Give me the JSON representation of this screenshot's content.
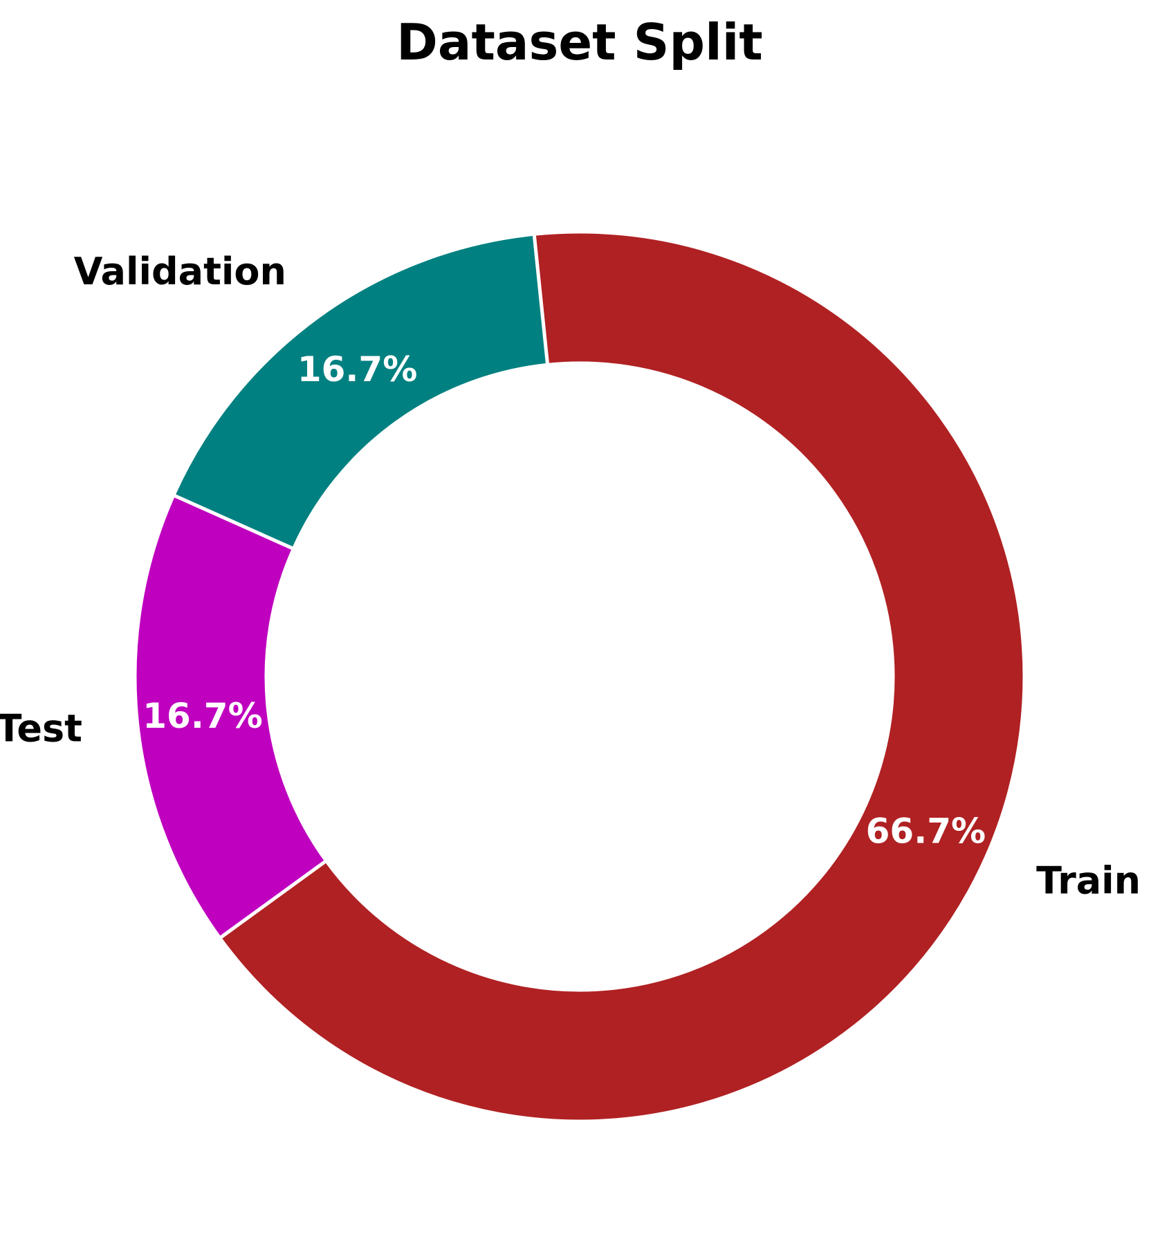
{
  "chart_data": {
    "type": "pie",
    "title": "Dataset Split",
    "donut": true,
    "start_angle_deg": 216,
    "direction": "counterclockwise",
    "slices": [
      {
        "label": "Train",
        "value": 66.7,
        "pct_label": "66.7%",
        "color": "#b02123"
      },
      {
        "label": "Validation",
        "value": 16.7,
        "pct_label": "16.7%",
        "color": "#008080"
      },
      {
        "label": "Test",
        "value": 16.7,
        "pct_label": "16.7%",
        "color": "#bf00bf"
      }
    ],
    "legend": "none"
  }
}
